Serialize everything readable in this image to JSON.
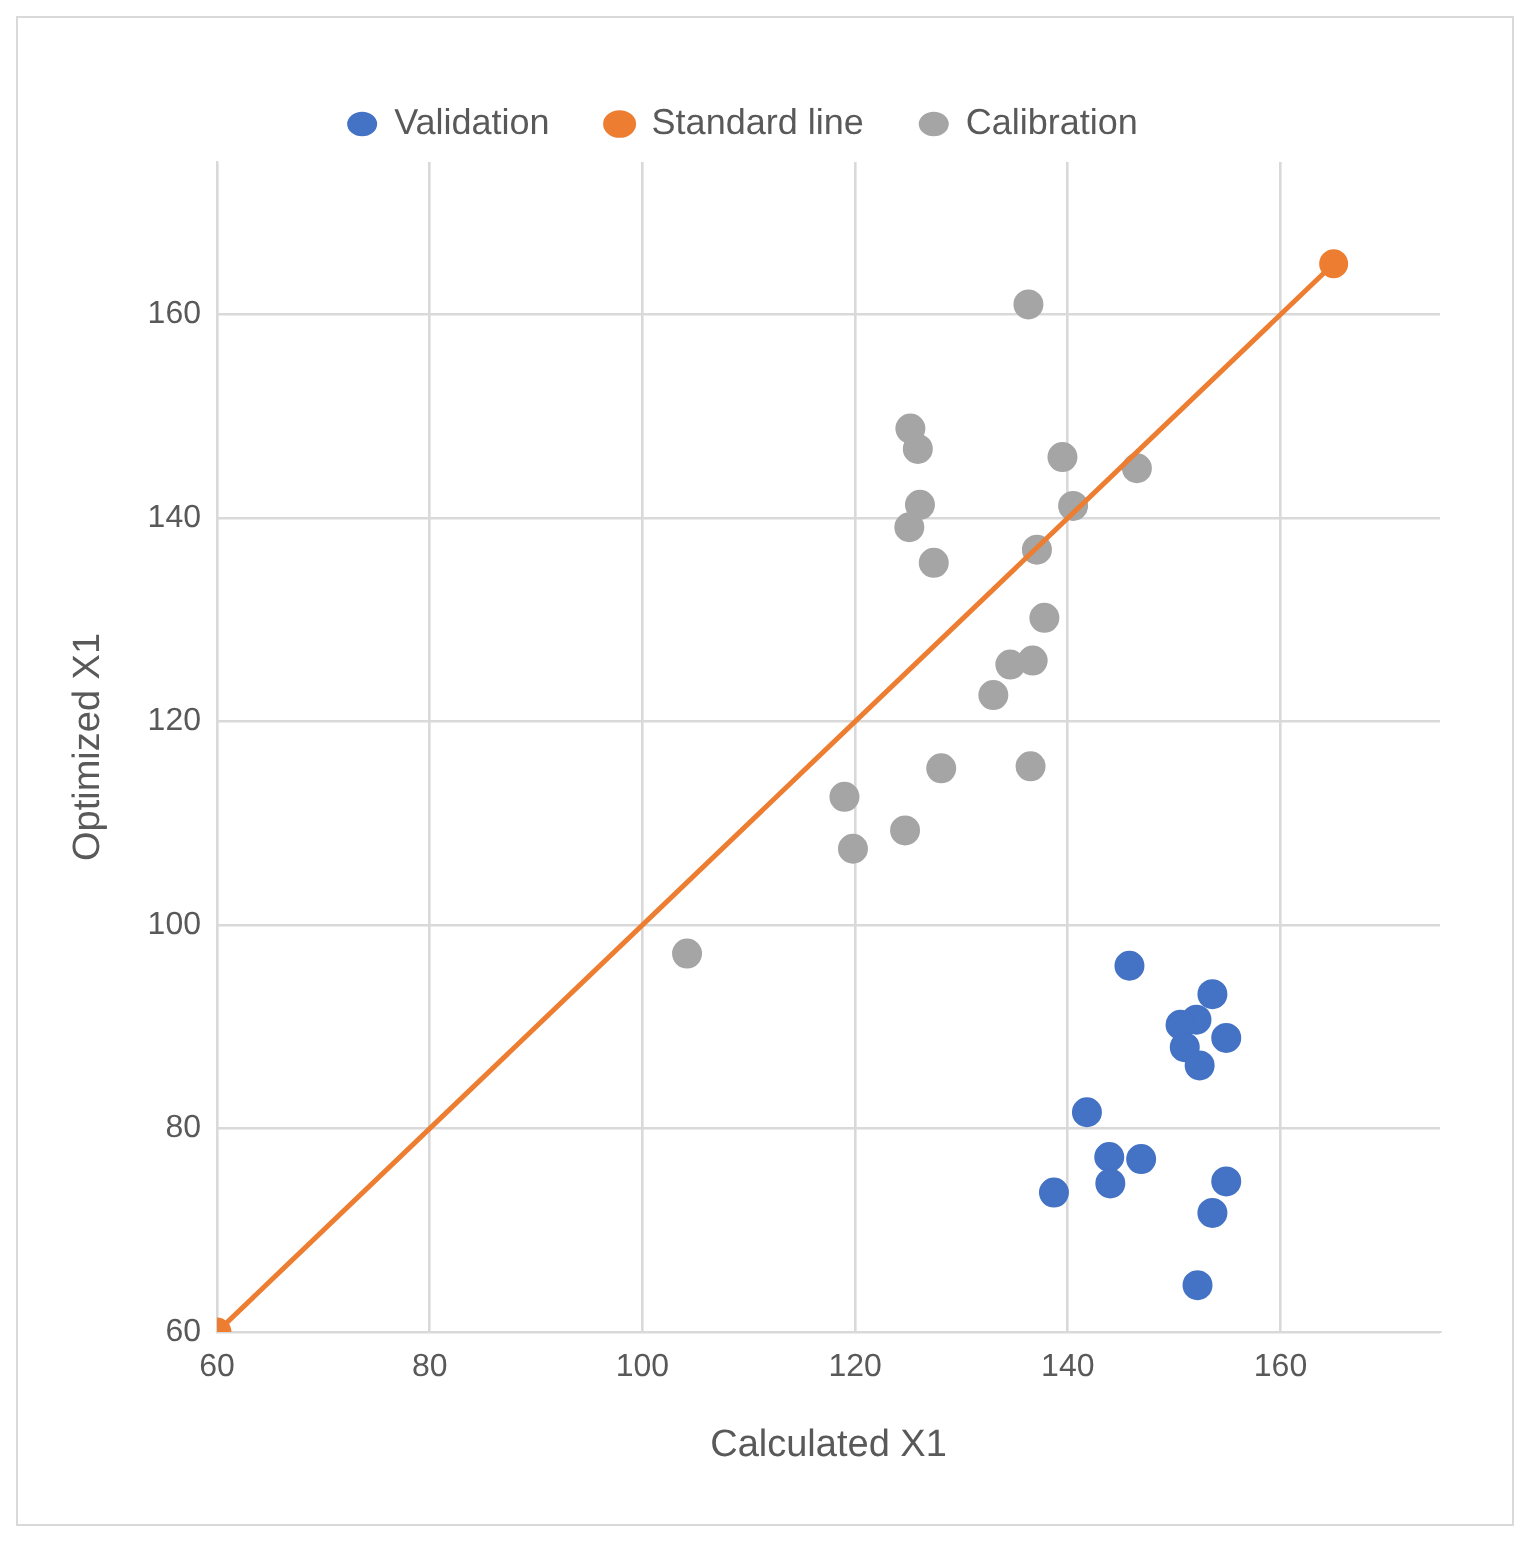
{
  "chart_data": {
    "type": "scatter",
    "xlabel": "Calculated X1",
    "ylabel": "Optimized X1",
    "xlim": [
      60,
      175
    ],
    "ylim": [
      60,
      175
    ],
    "xticks": [
      60,
      80,
      100,
      120,
      140,
      160
    ],
    "yticks": [
      60,
      80,
      100,
      120,
      140,
      160
    ],
    "grid": true,
    "legend": "top",
    "marker": "circle",
    "series": [
      {
        "name": "Validation",
        "color": "#4472c4",
        "type": "scatter",
        "x": [
          145.8,
          153.6,
          152.1,
          150.6,
          154.9,
          151.0,
          152.4,
          141.8,
          143.9,
          146.9,
          144.0,
          154.9,
          138.7,
          153.6,
          152.2
        ],
        "values": [
          96.0,
          93.2,
          90.7,
          90.2,
          88.9,
          88.0,
          86.2,
          81.6,
          77.2,
          77.0,
          74.6,
          74.8,
          73.7,
          71.7,
          64.6
        ]
      },
      {
        "name": "Standard line",
        "color": "#ed7d31",
        "type": "line",
        "x": [
          60,
          165
        ],
        "values": [
          60,
          165
        ]
      },
      {
        "name": "Calibration",
        "color": "#a5a5a5",
        "type": "scatter",
        "x": [
          136.3,
          125.2,
          125.9,
          139.5,
          146.5,
          126.1,
          140.5,
          125.1,
          127.4,
          137.1,
          137.8,
          136.7,
          134.6,
          133.0,
          128.1,
          136.5,
          119.0,
          124.7,
          119.8,
          104.2
        ],
        "values": [
          161.0,
          148.8,
          146.8,
          146.0,
          144.9,
          141.3,
          141.2,
          139.1,
          135.6,
          136.9,
          130.2,
          126.0,
          125.6,
          122.6,
          115.4,
          115.6,
          112.6,
          109.3,
          107.5,
          97.2
        ]
      }
    ]
  }
}
